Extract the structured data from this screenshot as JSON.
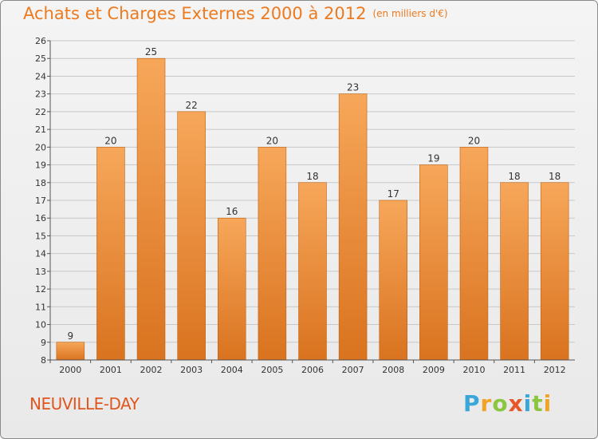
{
  "header": {
    "title": "Achats et Charges Externes 2000 à 2012",
    "unit": "(en milliers d'€)"
  },
  "footer": {
    "place": "NEUVILLE-DAY",
    "logo_letters": [
      "P",
      "r",
      "o",
      "x",
      "i",
      "t",
      "i"
    ]
  },
  "colors": {
    "bar_top": "#f7a75a",
    "bar_bottom": "#d9731f",
    "bar_edge": "#c0620f",
    "grid": "#c8c8c8",
    "axis": "#555555",
    "title": "#ee7a1f"
  },
  "chart_data": {
    "type": "bar",
    "title": "Achats et Charges Externes 2000 à 2012",
    "subtitle": "(en milliers d'€)",
    "xlabel": "",
    "ylabel": "",
    "categories": [
      "2000",
      "2001",
      "2002",
      "2003",
      "2004",
      "2005",
      "2006",
      "2007",
      "2008",
      "2009",
      "2010",
      "2011",
      "2012"
    ],
    "values": [
      9,
      20,
      25,
      22,
      16,
      20,
      18,
      23,
      17,
      19,
      20,
      18,
      18
    ],
    "ylim": [
      8,
      26
    ],
    "yticks": [
      8,
      9,
      10,
      11,
      12,
      13,
      14,
      15,
      16,
      17,
      18,
      19,
      20,
      21,
      22,
      23,
      24,
      25,
      26
    ],
    "grid": true,
    "data_labels": true
  }
}
